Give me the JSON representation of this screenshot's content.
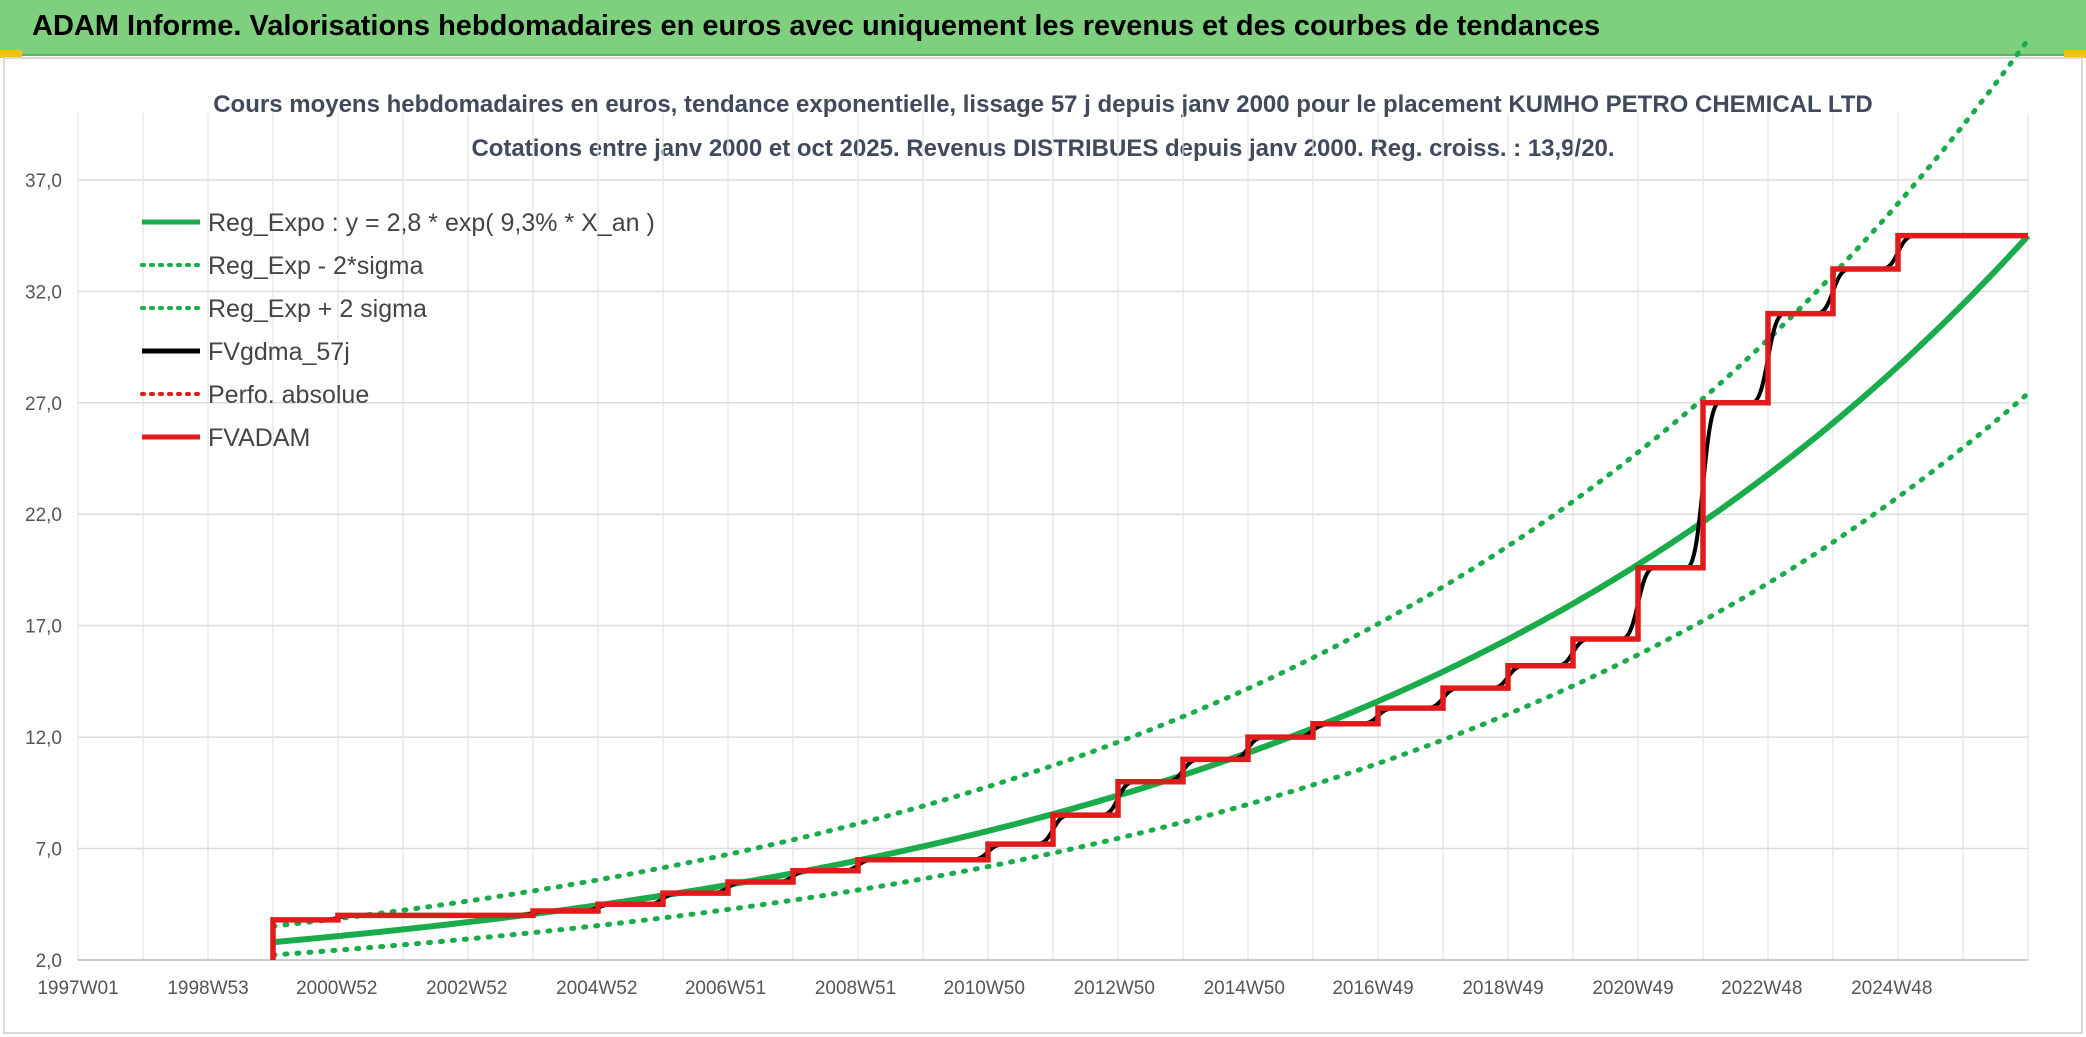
{
  "banner": {
    "title": "ADAM Informe. Valorisations hebdomadaires en euros avec uniquement les revenus et des courbes de tendances"
  },
  "chart_data": {
    "type": "line",
    "title": "Cours moyens hebdomadaires en euros, tendance exponentielle, lissage 57 j depuis janv 2000 pour le placement KUMHO PETRO CHEMICAL LTD",
    "subtitle": "Cotations entre janv 2000 et oct 2025. Revenus DISTRIBUES depuis janv 2000. Reg. croiss. : 13,9/20.",
    "xlabel": "",
    "ylabel": "",
    "x_range": [
      1997.0,
      2027.0
    ],
    "ylim": [
      2.0,
      40.0
    ],
    "y_ticks": [
      2.0,
      7.0,
      12.0,
      17.0,
      22.0,
      27.0,
      32.0,
      37.0
    ],
    "y_tick_labels": [
      "2,0",
      "7,0",
      "12,0",
      "17,0",
      "22,0",
      "27,0",
      "32,0",
      "37,0"
    ],
    "x_tick_labels": [
      "1997W01",
      "1998W53",
      "2000W52",
      "2002W52",
      "2004W52",
      "2006W51",
      "2008W51",
      "2010W50",
      "2012W50",
      "2014W50",
      "2016W49",
      "2018W49",
      "2020W49",
      "2022W48",
      "2024W48"
    ],
    "grid": true,
    "legend_position": "top-left",
    "regression": {
      "a": 2.8,
      "rate": 0.093,
      "start_year": 2000.0,
      "x_end": 2027.0,
      "sigma_factor_minus": 0.795,
      "sigma_factor_plus": 1.255
    },
    "fvadam_steps": [
      {
        "x": 2000.0,
        "y": 3.8
      },
      {
        "x": 2001.0,
        "y": 4.0
      },
      {
        "x": 2002.0,
        "y": 4.0
      },
      {
        "x": 2003.0,
        "y": 4.0
      },
      {
        "x": 2004.0,
        "y": 4.2
      },
      {
        "x": 2005.0,
        "y": 4.5
      },
      {
        "x": 2006.0,
        "y": 5.0
      },
      {
        "x": 2007.0,
        "y": 5.5
      },
      {
        "x": 2008.0,
        "y": 6.0
      },
      {
        "x": 2009.0,
        "y": 6.5
      },
      {
        "x": 2010.0,
        "y": 6.5
      },
      {
        "x": 2011.0,
        "y": 7.2
      },
      {
        "x": 2012.0,
        "y": 8.5
      },
      {
        "x": 2013.0,
        "y": 10.0
      },
      {
        "x": 2014.0,
        "y": 11.0
      },
      {
        "x": 2015.0,
        "y": 12.0
      },
      {
        "x": 2016.0,
        "y": 12.6
      },
      {
        "x": 2017.0,
        "y": 13.3
      },
      {
        "x": 2018.0,
        "y": 14.2
      },
      {
        "x": 2019.0,
        "y": 15.2
      },
      {
        "x": 2020.0,
        "y": 16.4
      },
      {
        "x": 2021.0,
        "y": 19.6
      },
      {
        "x": 2022.0,
        "y": 27.0
      },
      {
        "x": 2023.0,
        "y": 31.0
      },
      {
        "x": 2024.0,
        "y": 33.0
      },
      {
        "x": 2025.0,
        "y": 34.5
      },
      {
        "x": 2026.0,
        "y": 34.5
      }
    ],
    "fvadam_start_y": 2.0,
    "fvadam_end_x": 2027.0,
    "series": [
      {
        "name": "Reg_Expo : y = 2,8 * exp( 9,3% *  X_an )",
        "color": "#1aab4b",
        "style": "solid"
      },
      {
        "name": "Reg_Exp - 2*sigma",
        "color": "#1aab4b",
        "style": "dotted"
      },
      {
        "name": "Reg_Exp + 2 sigma",
        "color": "#1aab4b",
        "style": "dotted"
      },
      {
        "name": "FVgdma_57j",
        "color": "#000000",
        "style": "solid"
      },
      {
        "name": "Perfo. absolue",
        "color": "#e11b1b",
        "style": "dotted"
      },
      {
        "name": "FVADAM",
        "color": "#e11b1b",
        "style": "solid"
      }
    ]
  }
}
